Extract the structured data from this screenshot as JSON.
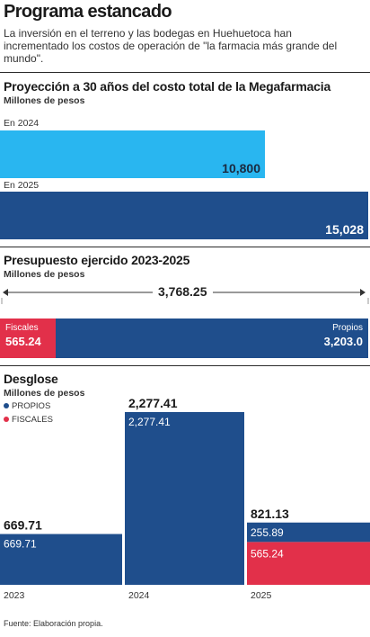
{
  "header": {
    "title": "Programa estancado",
    "subtitle": "La inversión en el terreno y las bodegas en Huehuetoca han incrementado los costos de operación de \"la farmacia más grande del mundo\"."
  },
  "colors": {
    "propios": "#1f4e8c",
    "fiscales": "#e2304a",
    "light": "#29b6f0"
  },
  "chart_data": [
    {
      "type": "bar",
      "title": "Proyección a 30 años del costo total de la Megafarmacia",
      "units": "Millones de pesos",
      "categories": [
        "En 2024",
        "En 2025"
      ],
      "values": [
        10800,
        15028
      ],
      "value_labels": [
        "10,800",
        "15,028"
      ]
    },
    {
      "type": "bar",
      "title": "Presupuesto ejercido 2023-2025",
      "units": "Millones de pesos",
      "total": 3768.25,
      "total_label": "3,768.25",
      "series": [
        {
          "name": "Fiscales",
          "values": [
            565.24
          ],
          "value_label": "565.24"
        },
        {
          "name": "Propios",
          "values": [
            3203.0
          ],
          "value_label": "3,203.0"
        }
      ]
    },
    {
      "type": "bar",
      "title": "Desglose",
      "units": "Millones de pesos",
      "categories": [
        "2023",
        "2024",
        "2025"
      ],
      "totals": [
        669.71,
        2277.41,
        821.13
      ],
      "total_labels": [
        "669.71",
        "2,277.41",
        "821.13"
      ],
      "legend": [
        "PROPIOS",
        "FISCALES"
      ],
      "series": [
        {
          "name": "PROPIOS",
          "values": [
            669.71,
            2277.41,
            255.89
          ],
          "labels": [
            "669.71",
            "2,277.41",
            "255.89"
          ]
        },
        {
          "name": "FISCALES",
          "values": [
            0,
            0,
            565.24
          ],
          "labels": [
            "",
            "",
            "565.24"
          ]
        }
      ]
    }
  ],
  "footer": {
    "source": "Fuente: Elaboración propia."
  }
}
